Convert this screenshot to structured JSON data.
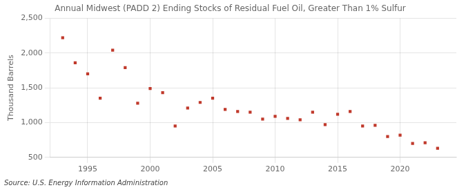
{
  "chart_data": {
    "type": "scatter",
    "title": "Annual Midwest (PADD 2) Ending Stocks of Residual Fuel Oil, Greater Than 1% Sulfur",
    "ylabel": "Thousand Barrels",
    "source": "Source: U.S. Energy Information Administration",
    "x": [
      1993,
      1994,
      1995,
      1996,
      1997,
      1998,
      1999,
      2000,
      2001,
      2002,
      2003,
      2004,
      2005,
      2006,
      2007,
      2008,
      2009,
      2010,
      2011,
      2012,
      2013,
      2014,
      2015,
      2016,
      2017,
      2018,
      2019,
      2020,
      2021,
      2022,
      2023
    ],
    "values": [
      2220,
      1860,
      1700,
      1350,
      2040,
      1790,
      1280,
      1490,
      1430,
      950,
      1210,
      1290,
      1350,
      1190,
      1160,
      1150,
      1050,
      1090,
      1060,
      1040,
      1150,
      970,
      1120,
      1160,
      950,
      960,
      800,
      820,
      700,
      710,
      630
    ],
    "color": "#c0392b",
    "marker": "square",
    "xlim": [
      1992.0,
      2024.5
    ],
    "xticks": [
      1995,
      2000,
      2005,
      2010,
      2015,
      2020
    ],
    "ylim": [
      500,
      2500
    ],
    "yticks": [
      500,
      {
        "value": 1000,
        "label": "1,000"
      },
      {
        "value": 1500,
        "label": "1,500"
      },
      {
        "value": 2000,
        "label": "2,000"
      },
      {
        "value": 2500,
        "label": "2,500"
      }
    ],
    "grid": true
  }
}
